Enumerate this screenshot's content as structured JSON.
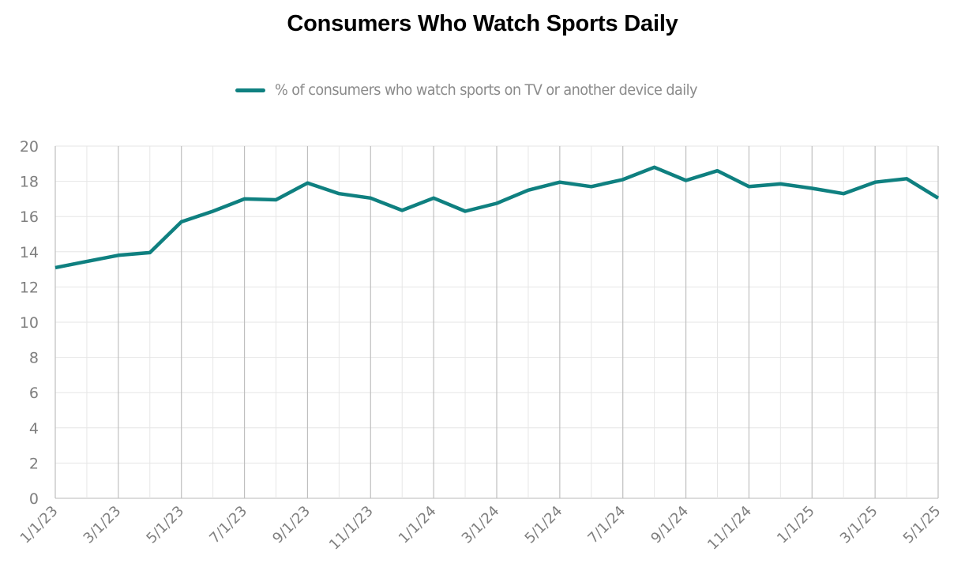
{
  "chart_data": {
    "type": "line",
    "title": "Consumers Who Watch Sports Daily",
    "xlabel": "",
    "ylabel": "",
    "legend_position": "top-center",
    "grid": true,
    "ylim": [
      0,
      20
    ],
    "yticks": [
      0,
      2,
      4,
      6,
      8,
      10,
      12,
      14,
      16,
      18,
      20
    ],
    "x": [
      "1/1/23",
      "2/1/23",
      "3/1/23",
      "4/1/23",
      "5/1/23",
      "6/1/23",
      "7/1/23",
      "8/1/23",
      "9/1/23",
      "10/1/23",
      "11/1/23",
      "12/1/23",
      "1/1/24",
      "2/1/24",
      "3/1/24",
      "4/1/24",
      "5/1/24",
      "6/1/24",
      "7/1/24",
      "8/1/24",
      "9/1/24",
      "10/1/24",
      "11/1/24",
      "12/1/24",
      "1/1/25",
      "2/1/25",
      "3/1/25",
      "4/1/25",
      "5/1/25"
    ],
    "xtick_labels": [
      "1/1/23",
      "3/1/23",
      "5/1/23",
      "7/1/23",
      "9/1/23",
      "11/1/23",
      "1/1/24",
      "3/1/24",
      "5/1/24",
      "7/1/24",
      "9/1/24",
      "11/1/24",
      "1/1/25",
      "3/1/25",
      "5/1/25"
    ],
    "series": [
      {
        "name": "% of consumers who watch sports on TV or another device daily",
        "color": "#0f8080",
        "values": [
          13.1,
          13.45,
          13.8,
          13.95,
          15.7,
          16.3,
          17.0,
          16.95,
          17.9,
          17.3,
          17.05,
          16.35,
          17.05,
          16.3,
          16.75,
          17.5,
          17.95,
          17.7,
          18.1,
          18.8,
          18.05,
          18.6,
          17.7,
          17.85,
          17.6,
          17.3,
          17.95,
          18.15,
          17.05
        ]
      }
    ]
  },
  "colors": {
    "series": "#0f8080",
    "grid_minor": "#e6e6e6",
    "grid_major": "#bfbfbf",
    "axis_text": "#7f7f7f"
  }
}
